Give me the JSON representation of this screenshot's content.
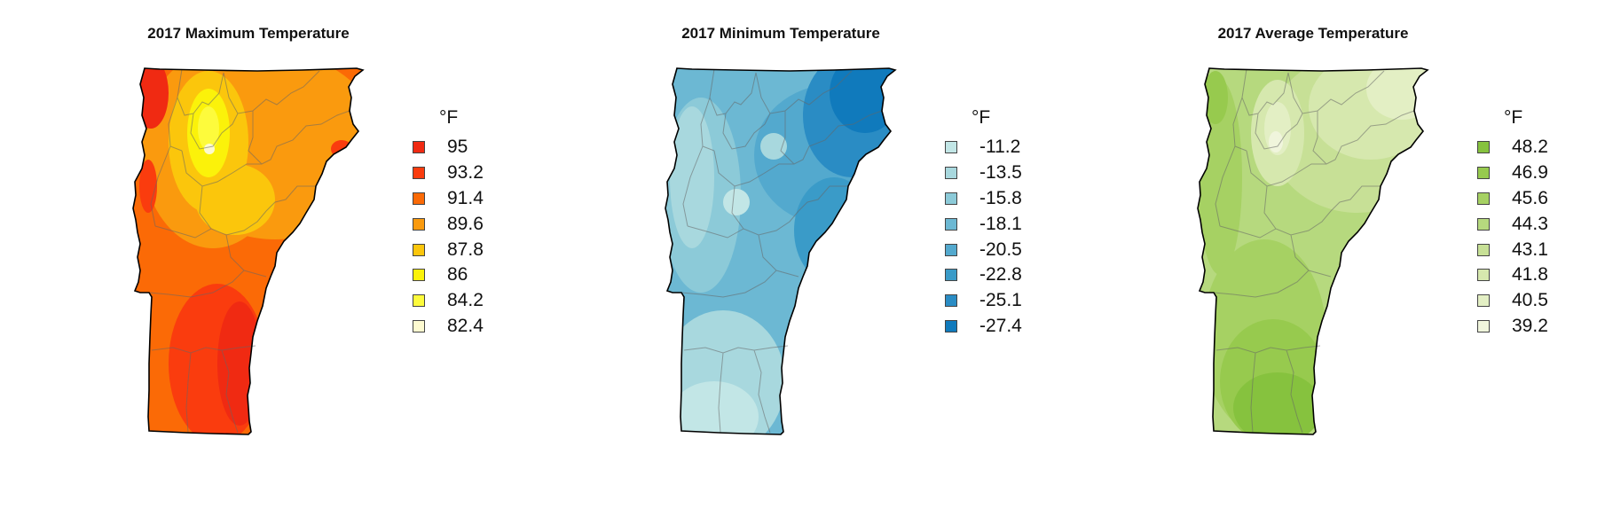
{
  "maps": [
    {
      "id": "max",
      "title": "2017 Maximum Temperature",
      "unit": "°F",
      "legend": [
        {
          "label": "95",
          "color": "#f02a12"
        },
        {
          "label": "93.2",
          "color": "#fa3c0e"
        },
        {
          "label": "91.4",
          "color": "#fb6a06"
        },
        {
          "label": "89.6",
          "color": "#fa9a0e"
        },
        {
          "label": "87.8",
          "color": "#fbc60c"
        },
        {
          "label": "86",
          "color": "#fbf20a"
        },
        {
          "label": "84.2",
          "color": "#fdfb3c"
        },
        {
          "label": "82.4",
          "color": "#fdfad0"
        }
      ]
    },
    {
      "id": "min",
      "title": "2017 Minimum Temperature",
      "unit": "°F",
      "legend": [
        {
          "label": "-11.2",
          "color": "#c2e6e6"
        },
        {
          "label": "-13.5",
          "color": "#a8d8de"
        },
        {
          "label": "-15.8",
          "color": "#8ccad8"
        },
        {
          "label": "-18.1",
          "color": "#6cb8d3"
        },
        {
          "label": "-20.5",
          "color": "#53a9ce"
        },
        {
          "label": "-22.8",
          "color": "#3a9bc8"
        },
        {
          "label": "-25.1",
          "color": "#2a8cc4"
        },
        {
          "label": "-27.4",
          "color": "#107abc"
        }
      ]
    },
    {
      "id": "avg",
      "title": "2017 Average Temperature",
      "unit": "°F",
      "legend": [
        {
          "label": "48.2",
          "color": "#86c23e"
        },
        {
          "label": "46.9",
          "color": "#97ca4e"
        },
        {
          "label": "45.6",
          "color": "#a6d163"
        },
        {
          "label": "44.3",
          "color": "#b6d97e"
        },
        {
          "label": "43.1",
          "color": "#c7e096"
        },
        {
          "label": "41.8",
          "color": "#d6e8ae"
        },
        {
          "label": "40.5",
          "color": "#e3efc4"
        },
        {
          "label": "39.2",
          "color": "#f0f5dc"
        }
      ]
    }
  ]
}
